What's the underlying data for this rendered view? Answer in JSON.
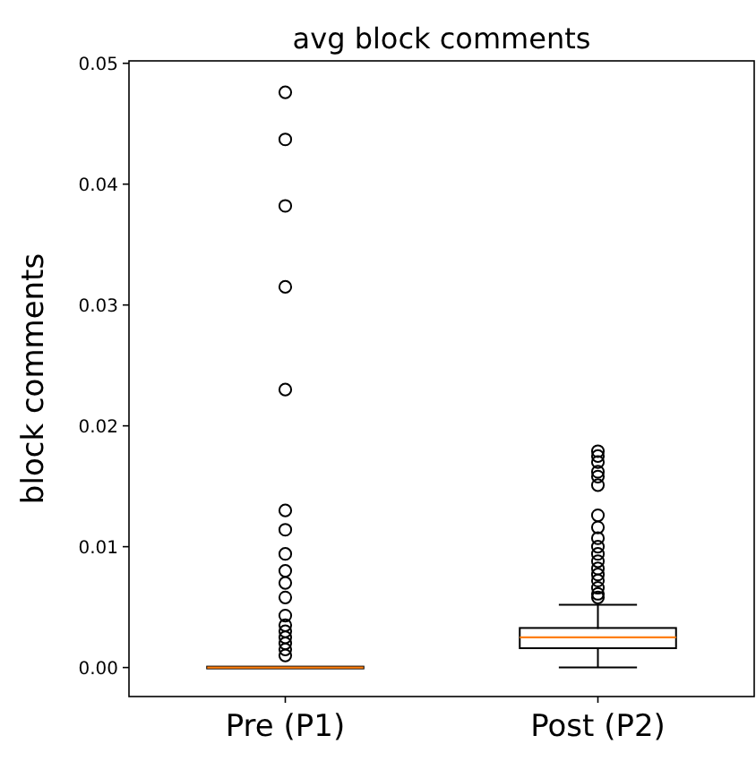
{
  "chart_data": {
    "type": "box",
    "title": "avg block comments",
    "ylabel": "block comments",
    "categories": [
      "Pre (P1)",
      "Post (P2)"
    ],
    "boxes": [
      {
        "low": 0,
        "q1": 0,
        "median": 0,
        "q3": 0,
        "high": 0,
        "outliers": [
          0.0476,
          0.0437,
          0.0382,
          0.0315,
          0.023,
          0.013,
          0.0114,
          0.0094,
          0.008,
          0.007,
          0.0058,
          0.0043,
          0.0035,
          0.003,
          0.0025,
          0.002,
          0.0015,
          0.001
        ]
      },
      {
        "low": 0,
        "q1": 0.0016,
        "median": 0.0025,
        "q3": 0.0032,
        "high": 0.0052,
        "outliers": [
          0.0179,
          0.0175,
          0.017,
          0.0162,
          0.0158,
          0.0151,
          0.0126,
          0.0116,
          0.0107,
          0.01,
          0.0094,
          0.0088,
          0.0082,
          0.0077,
          0.0072,
          0.0066,
          0.0061,
          0.0058
        ]
      }
    ],
    "color": "#000000",
    "ylim": [
      -0.0024,
      0.0502
    ],
    "yticks": [
      {
        "value": 0,
        "label": "0.00"
      },
      {
        "value": 0.01,
        "label": "0.01"
      },
      {
        "value": 0.02,
        "label": "0.02"
      },
      {
        "value": 0.03,
        "label": "0.03"
      },
      {
        "value": 0.04,
        "label": "0.04"
      },
      {
        "value": 0.05,
        "label": "0.05"
      }
    ],
    "grid": false,
    "marker": "circle"
  }
}
